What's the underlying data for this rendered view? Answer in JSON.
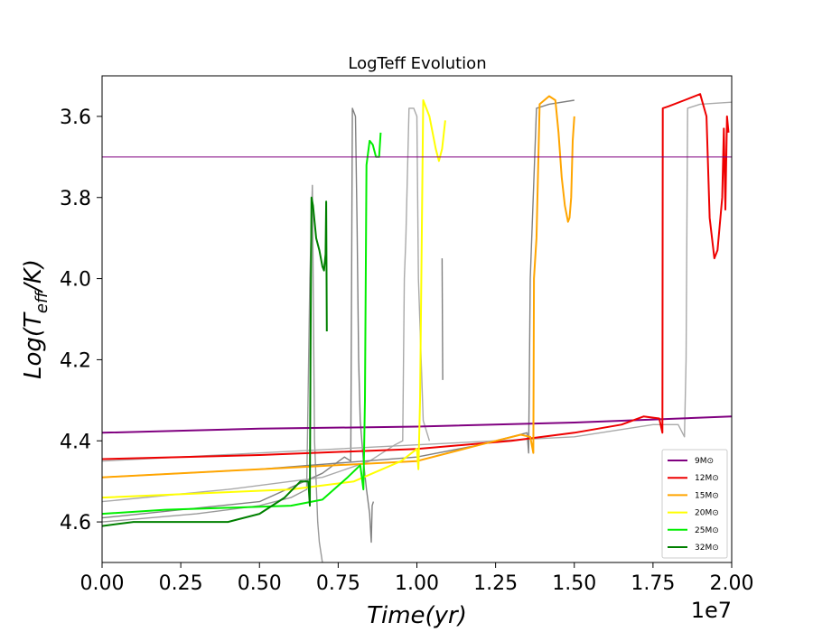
{
  "chart_data": {
    "type": "line",
    "title": "LogTeff Evolution",
    "xlabel": "Time(yr)",
    "ylabel": "Log(T_eff/K)",
    "x_offset_label": "1e7",
    "xlim": [
      0.0,
      2.0
    ],
    "ylim": [
      4.7,
      3.5
    ],
    "y_inverted": true,
    "x_ticks": [
      "0.00",
      "0.25",
      "0.50",
      "0.75",
      "1.00",
      "1.25",
      "1.50",
      "1.75",
      "2.00"
    ],
    "y_ticks": [
      "3.6",
      "3.8",
      "4.0",
      "4.2",
      "4.4",
      "4.6"
    ],
    "grid": false,
    "legend_position": "lower-right",
    "reference_line": {
      "y": 3.7,
      "color": "#800080"
    },
    "series": [
      {
        "name": "9M⊙",
        "color": "#800080",
        "points": [
          [
            0.0,
            4.38
          ],
          [
            0.5,
            4.37
          ],
          [
            1.0,
            4.365
          ],
          [
            1.5,
            4.355
          ],
          [
            2.0,
            4.34
          ]
        ]
      },
      {
        "name": "12M⊙",
        "color": "#ee0000",
        "points": [
          [
            0.0,
            4.445
          ],
          [
            0.5,
            4.435
          ],
          [
            1.0,
            4.42
          ],
          [
            1.3,
            4.4
          ],
          [
            1.5,
            4.38
          ],
          [
            1.65,
            4.36
          ],
          [
            1.72,
            4.34
          ],
          [
            1.77,
            4.345
          ],
          [
            1.78,
            4.38
          ],
          [
            1.781,
            3.58
          ],
          [
            1.8,
            3.575
          ],
          [
            1.85,
            3.56
          ],
          [
            1.9,
            3.545
          ],
          [
            1.92,
            3.6
          ],
          [
            1.93,
            3.85
          ],
          [
            1.945,
            3.95
          ],
          [
            1.955,
            3.93
          ],
          [
            1.97,
            3.8
          ],
          [
            1.975,
            3.63
          ],
          [
            1.98,
            3.83
          ],
          [
            1.985,
            3.6
          ],
          [
            1.99,
            3.64
          ]
        ]
      },
      {
        "name": "15M⊙",
        "color": "#ffa500",
        "points": [
          [
            0.0,
            4.49
          ],
          [
            0.5,
            4.47
          ],
          [
            1.0,
            4.45
          ],
          [
            1.2,
            4.41
          ],
          [
            1.33,
            4.385
          ],
          [
            1.36,
            4.39
          ],
          [
            1.37,
            4.43
          ],
          [
            1.372,
            4.0
          ],
          [
            1.38,
            3.9
          ],
          [
            1.39,
            3.57
          ],
          [
            1.42,
            3.55
          ],
          [
            1.44,
            3.56
          ],
          [
            1.45,
            3.64
          ],
          [
            1.46,
            3.75
          ],
          [
            1.47,
            3.82
          ],
          [
            1.48,
            3.86
          ],
          [
            1.485,
            3.85
          ],
          [
            1.49,
            3.8
          ],
          [
            1.495,
            3.66
          ],
          [
            1.5,
            3.6
          ]
        ]
      },
      {
        "name": "20M⊙",
        "color": "#ffff00",
        "points": [
          [
            0.0,
            4.54
          ],
          [
            0.3,
            4.53
          ],
          [
            0.6,
            4.52
          ],
          [
            0.8,
            4.5
          ],
          [
            0.95,
            4.45
          ],
          [
            1.0,
            4.42
          ],
          [
            1.005,
            4.47
          ],
          [
            1.01,
            4.3
          ],
          [
            1.02,
            3.56
          ],
          [
            1.04,
            3.6
          ],
          [
            1.06,
            3.68
          ],
          [
            1.07,
            3.71
          ],
          [
            1.08,
            3.68
          ],
          [
            1.09,
            3.61
          ]
        ]
      },
      {
        "name": "25M⊙",
        "color": "#00ee00",
        "points": [
          [
            0.0,
            4.58
          ],
          [
            0.2,
            4.57
          ],
          [
            0.4,
            4.565
          ],
          [
            0.6,
            4.56
          ],
          [
            0.7,
            4.545
          ],
          [
            0.78,
            4.49
          ],
          [
            0.82,
            4.46
          ],
          [
            0.83,
            4.52
          ],
          [
            0.835,
            4.3
          ],
          [
            0.84,
            3.72
          ],
          [
            0.85,
            3.66
          ],
          [
            0.86,
            3.67
          ],
          [
            0.87,
            3.7
          ],
          [
            0.88,
            3.7
          ],
          [
            0.885,
            3.64
          ]
        ]
      },
      {
        "name": "32M⊙",
        "color": "#008000",
        "points": [
          [
            0.0,
            4.61
          ],
          [
            0.1,
            4.6
          ],
          [
            0.2,
            4.6
          ],
          [
            0.3,
            4.6
          ],
          [
            0.4,
            4.6
          ],
          [
            0.5,
            4.58
          ],
          [
            0.58,
            4.54
          ],
          [
            0.63,
            4.5
          ],
          [
            0.655,
            4.5
          ],
          [
            0.66,
            4.56
          ],
          [
            0.662,
            4.2
          ],
          [
            0.665,
            3.8
          ],
          [
            0.67,
            3.82
          ],
          [
            0.68,
            3.9
          ],
          [
            0.69,
            3.93
          ],
          [
            0.7,
            3.97
          ],
          [
            0.705,
            3.98
          ],
          [
            0.71,
            3.94
          ],
          [
            0.712,
            3.81
          ],
          [
            0.714,
            4.13
          ]
        ]
      }
    ],
    "unlabeled_gray_tracks": [
      {
        "color": "#808080",
        "points": [
          [
            0.0,
            4.59
          ],
          [
            0.5,
            4.55
          ],
          [
            0.7,
            4.48
          ],
          [
            0.77,
            4.44
          ],
          [
            0.79,
            4.45
          ],
          [
            0.795,
            3.58
          ],
          [
            0.805,
            3.6
          ],
          [
            0.81,
            3.87
          ],
          [
            0.815,
            4.2
          ],
          [
            0.82,
            4.35
          ],
          [
            0.83,
            4.45
          ],
          [
            0.84,
            4.52
          ],
          [
            0.85,
            4.58
          ],
          [
            0.855,
            4.65
          ],
          [
            0.858,
            4.56
          ],
          [
            0.862,
            4.55
          ]
        ]
      },
      {
        "color": "#999999",
        "points": [
          [
            0.0,
            4.6
          ],
          [
            0.3,
            4.58
          ],
          [
            0.5,
            4.56
          ],
          [
            0.6,
            4.54
          ],
          [
            0.65,
            4.52
          ],
          [
            0.66,
            4.0
          ],
          [
            0.668,
            3.77
          ],
          [
            0.675,
            4.4
          ],
          [
            0.685,
            4.6
          ],
          [
            0.69,
            4.65
          ],
          [
            0.7,
            4.7
          ]
        ]
      },
      {
        "color": "#a9a9a9",
        "points": [
          [
            0.0,
            4.55
          ],
          [
            0.4,
            4.52
          ],
          [
            0.7,
            4.49
          ],
          [
            0.85,
            4.45
          ],
          [
            0.93,
            4.41
          ],
          [
            0.955,
            4.4
          ],
          [
            0.96,
            4.0
          ],
          [
            0.965,
            3.9
          ],
          [
            0.975,
            3.58
          ],
          [
            0.99,
            3.58
          ],
          [
            1.0,
            3.6
          ],
          [
            1.005,
            4.0
          ],
          [
            1.02,
            4.35
          ],
          [
            1.04,
            4.4
          ]
        ]
      },
      {
        "color": "#808080",
        "points": [
          [
            0.0,
            4.49
          ],
          [
            0.5,
            4.47
          ],
          [
            1.0,
            4.44
          ],
          [
            1.2,
            4.41
          ],
          [
            1.3,
            4.39
          ],
          [
            1.35,
            4.38
          ],
          [
            1.355,
            4.43
          ],
          [
            1.36,
            4.0
          ],
          [
            1.38,
            3.58
          ],
          [
            1.42,
            3.57
          ],
          [
            1.5,
            3.56
          ]
        ]
      },
      {
        "color": "#a9a9a9",
        "points": [
          [
            0.0,
            4.45
          ],
          [
            0.5,
            4.43
          ],
          [
            1.0,
            4.41
          ],
          [
            1.5,
            4.39
          ],
          [
            1.75,
            4.36
          ],
          [
            1.83,
            4.36
          ],
          [
            1.85,
            4.39
          ],
          [
            1.855,
            4.2
          ],
          [
            1.86,
            3.58
          ],
          [
            1.9,
            3.57
          ],
          [
            2.0,
            3.565
          ]
        ]
      },
      {
        "color": "#808080",
        "points": [
          [
            1.08,
            3.95
          ],
          [
            1.082,
            4.25
          ]
        ]
      }
    ]
  }
}
